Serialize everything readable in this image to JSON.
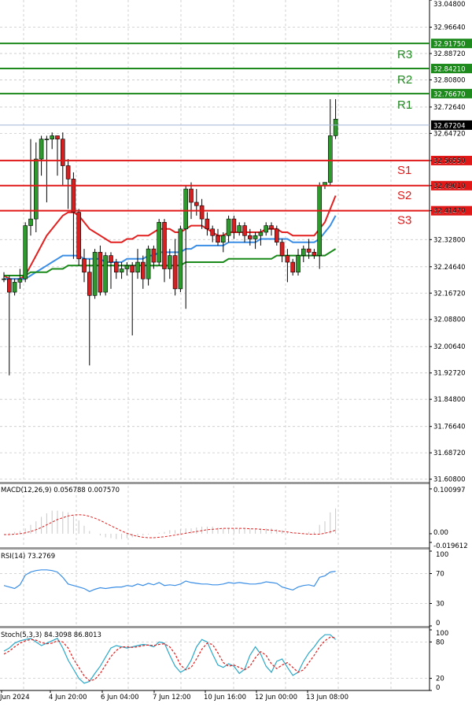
{
  "colors": {
    "bull": "#2e9a2e",
    "bear": "#d42020",
    "resistance": "#1e8a1e",
    "support": "#e01818",
    "ma_red": "#e32020",
    "ma_blue": "#3a8ee6",
    "ma_green": "#1a8a1a",
    "macd_hist": "#c8c8c8",
    "macd_signal": "#e02020",
    "rsi": "#3a8ee6",
    "stoch_main": "#2aa8c8",
    "stoch_signal": "#e02020",
    "grid": "#c8c8c8",
    "current": "#a0b4d8"
  },
  "chart_data": [
    {
      "type": "candlestick",
      "name": "price",
      "ylim": [
        31.6,
        33.048
      ],
      "y_ticks": [
        "33.04800",
        "32.96640",
        "32.88720",
        "32.80800",
        "32.72640",
        "32.64720",
        "32.56550",
        "32.49010",
        "32.41470",
        "32.32800",
        "32.24640",
        "32.16720",
        "32.08800",
        "32.00640",
        "31.92720",
        "31.84800",
        "31.76640",
        "31.68720",
        "31.60800"
      ],
      "current_price": "32.67204",
      "levels": [
        {
          "label": "R3",
          "value": "32.91750",
          "kind": "resistance"
        },
        {
          "label": "R2",
          "value": "32.84210",
          "kind": "resistance"
        },
        {
          "label": "R1",
          "value": "32.76670",
          "kind": "resistance"
        },
        {
          "label": "S1",
          "value": "32.56550",
          "kind": "support"
        },
        {
          "label": "S2",
          "value": "32.49010",
          "kind": "support"
        },
        {
          "label": "S3",
          "value": "32.41470",
          "kind": "support"
        }
      ],
      "candles": [
        {
          "o": 32.21,
          "h": 32.23,
          "l": 32.2,
          "c": 32.21
        },
        {
          "o": 32.21,
          "h": 32.22,
          "l": 31.92,
          "c": 32.17
        },
        {
          "o": 32.17,
          "h": 32.21,
          "l": 32.16,
          "c": 32.2
        },
        {
          "o": 32.2,
          "h": 32.24,
          "l": 32.18,
          "c": 32.21
        },
        {
          "o": 32.21,
          "h": 32.38,
          "l": 32.2,
          "c": 32.37
        },
        {
          "o": 32.37,
          "h": 32.63,
          "l": 32.34,
          "c": 32.39
        },
        {
          "o": 32.39,
          "h": 32.62,
          "l": 32.35,
          "c": 32.57
        },
        {
          "o": 32.57,
          "h": 32.64,
          "l": 32.52,
          "c": 32.63
        },
        {
          "o": 32.63,
          "h": 32.64,
          "l": 32.44,
          "c": 32.63
        },
        {
          "o": 32.63,
          "h": 32.65,
          "l": 32.6,
          "c": 32.64
        },
        {
          "o": 32.64,
          "h": 32.64,
          "l": 32.52,
          "c": 32.63
        },
        {
          "o": 32.63,
          "h": 32.65,
          "l": 32.49,
          "c": 32.55
        },
        {
          "o": 32.55,
          "h": 32.57,
          "l": 32.42,
          "c": 32.51
        },
        {
          "o": 32.51,
          "h": 32.53,
          "l": 32.27,
          "c": 32.41
        },
        {
          "o": 32.41,
          "h": 32.42,
          "l": 32.25,
          "c": 32.27
        },
        {
          "o": 32.27,
          "h": 32.3,
          "l": 32.2,
          "c": 32.23
        },
        {
          "o": 32.23,
          "h": 32.27,
          "l": 31.95,
          "c": 32.16
        },
        {
          "o": 32.16,
          "h": 32.3,
          "l": 32.15,
          "c": 32.29
        },
        {
          "o": 32.29,
          "h": 32.31,
          "l": 32.16,
          "c": 32.17
        },
        {
          "o": 32.17,
          "h": 32.29,
          "l": 32.16,
          "c": 32.28
        },
        {
          "o": 32.28,
          "h": 32.29,
          "l": 32.18,
          "c": 32.26
        },
        {
          "o": 32.26,
          "h": 32.27,
          "l": 32.21,
          "c": 32.23
        },
        {
          "o": 32.23,
          "h": 32.26,
          "l": 32.21,
          "c": 32.24
        },
        {
          "o": 32.24,
          "h": 32.26,
          "l": 32.22,
          "c": 32.25
        },
        {
          "o": 32.25,
          "h": 32.26,
          "l": 32.04,
          "c": 32.23
        },
        {
          "o": 32.23,
          "h": 32.3,
          "l": 32.21,
          "c": 32.26
        },
        {
          "o": 32.26,
          "h": 32.28,
          "l": 32.18,
          "c": 32.21
        },
        {
          "o": 32.21,
          "h": 32.31,
          "l": 32.19,
          "c": 32.3
        },
        {
          "o": 32.3,
          "h": 32.31,
          "l": 32.24,
          "c": 32.26
        },
        {
          "o": 32.26,
          "h": 32.39,
          "l": 32.25,
          "c": 32.38
        },
        {
          "o": 32.38,
          "h": 32.39,
          "l": 32.2,
          "c": 32.24
        },
        {
          "o": 32.24,
          "h": 32.3,
          "l": 32.21,
          "c": 32.28
        },
        {
          "o": 32.28,
          "h": 32.33,
          "l": 32.16,
          "c": 32.18
        },
        {
          "o": 32.18,
          "h": 32.37,
          "l": 32.17,
          "c": 32.36
        },
        {
          "o": 32.36,
          "h": 32.49,
          "l": 32.12,
          "c": 32.48
        },
        {
          "o": 32.48,
          "h": 32.5,
          "l": 32.39,
          "c": 32.44
        },
        {
          "o": 32.44,
          "h": 32.48,
          "l": 32.4,
          "c": 32.43
        },
        {
          "o": 32.43,
          "h": 32.45,
          "l": 32.36,
          "c": 32.39
        },
        {
          "o": 32.39,
          "h": 32.41,
          "l": 32.34,
          "c": 32.36
        },
        {
          "o": 32.36,
          "h": 32.37,
          "l": 32.32,
          "c": 32.34
        },
        {
          "o": 32.34,
          "h": 32.36,
          "l": 32.31,
          "c": 32.32
        },
        {
          "o": 32.32,
          "h": 32.35,
          "l": 32.29,
          "c": 32.34
        },
        {
          "o": 32.34,
          "h": 32.4,
          "l": 32.32,
          "c": 32.39
        },
        {
          "o": 32.39,
          "h": 32.4,
          "l": 32.33,
          "c": 32.35
        },
        {
          "o": 32.35,
          "h": 32.38,
          "l": 32.34,
          "c": 32.37
        },
        {
          "o": 32.37,
          "h": 32.38,
          "l": 32.32,
          "c": 32.34
        },
        {
          "o": 32.34,
          "h": 32.36,
          "l": 32.31,
          "c": 32.33
        },
        {
          "o": 32.33,
          "h": 32.35,
          "l": 32.3,
          "c": 32.34
        },
        {
          "o": 32.34,
          "h": 32.36,
          "l": 32.31,
          "c": 32.35
        },
        {
          "o": 32.35,
          "h": 32.38,
          "l": 32.34,
          "c": 32.37
        },
        {
          "o": 32.37,
          "h": 32.38,
          "l": 32.34,
          "c": 32.36
        },
        {
          "o": 32.36,
          "h": 32.37,
          "l": 32.31,
          "c": 32.32
        },
        {
          "o": 32.32,
          "h": 32.33,
          "l": 32.26,
          "c": 32.28
        },
        {
          "o": 32.28,
          "h": 32.3,
          "l": 32.2,
          "c": 32.26
        },
        {
          "o": 32.26,
          "h": 32.27,
          "l": 32.22,
          "c": 32.23
        },
        {
          "o": 32.23,
          "h": 32.3,
          "l": 32.22,
          "c": 32.28
        },
        {
          "o": 32.28,
          "h": 32.31,
          "l": 32.26,
          "c": 32.3
        },
        {
          "o": 32.3,
          "h": 32.33,
          "l": 32.27,
          "c": 32.29
        },
        {
          "o": 32.29,
          "h": 32.3,
          "l": 32.27,
          "c": 32.28
        },
        {
          "o": 32.28,
          "h": 32.5,
          "l": 32.24,
          "c": 32.49
        },
        {
          "o": 32.49,
          "h": 32.5,
          "l": 32.48,
          "c": 32.5
        },
        {
          "o": 32.5,
          "h": 32.75,
          "l": 32.49,
          "c": 32.64
        },
        {
          "o": 32.64,
          "h": 32.75,
          "l": 32.63,
          "c": 32.69
        }
      ],
      "moving_averages": [
        {
          "color_key": "ma_red",
          "values": [
            32.22,
            32.21,
            32.21,
            32.21,
            32.22,
            32.25,
            32.28,
            32.31,
            32.34,
            32.36,
            32.38,
            32.4,
            32.41,
            32.41,
            32.4,
            32.38,
            32.36,
            32.35,
            32.34,
            32.33,
            32.32,
            32.32,
            32.32,
            32.33,
            32.33,
            32.34,
            32.34,
            32.34,
            32.35,
            32.36,
            32.36,
            32.36,
            32.35,
            32.35,
            32.36,
            32.37,
            32.37,
            32.37,
            32.36,
            32.35,
            32.34,
            32.34,
            32.35,
            32.35,
            32.35,
            32.35,
            32.35,
            32.35,
            32.35,
            32.36,
            32.36,
            32.36,
            32.35,
            32.35,
            32.34,
            32.34,
            32.34,
            32.34,
            32.34,
            32.36,
            32.38,
            32.42,
            32.46
          ]
        },
        {
          "color_key": "ma_blue",
          "values": [
            32.21,
            32.21,
            32.21,
            32.21,
            32.21,
            32.22,
            32.23,
            32.24,
            32.25,
            32.26,
            32.27,
            32.28,
            32.28,
            32.28,
            32.28,
            32.27,
            32.27,
            32.27,
            32.27,
            32.26,
            32.26,
            32.26,
            32.26,
            32.27,
            32.27,
            32.27,
            32.27,
            32.28,
            32.28,
            32.29,
            32.29,
            32.29,
            32.29,
            32.29,
            32.3,
            32.3,
            32.31,
            32.31,
            32.31,
            32.31,
            32.31,
            32.31,
            32.32,
            32.32,
            32.32,
            32.32,
            32.32,
            32.32,
            32.33,
            32.33,
            32.33,
            32.33,
            32.33,
            32.33,
            32.32,
            32.32,
            32.32,
            32.32,
            32.32,
            32.33,
            32.35,
            32.37,
            32.4
          ]
        },
        {
          "color_key": "ma_green",
          "values": [
            32.22,
            32.22,
            32.22,
            32.22,
            32.22,
            32.23,
            32.23,
            32.23,
            32.23,
            32.24,
            32.24,
            32.24,
            32.25,
            32.25,
            32.25,
            32.25,
            32.25,
            32.25,
            32.25,
            32.25,
            32.25,
            32.25,
            32.25,
            32.25,
            32.25,
            32.25,
            32.25,
            32.25,
            32.25,
            32.25,
            32.25,
            32.25,
            32.25,
            32.25,
            32.26,
            32.26,
            32.26,
            32.26,
            32.26,
            32.26,
            32.26,
            32.26,
            32.27,
            32.27,
            32.27,
            32.27,
            32.27,
            32.27,
            32.27,
            32.27,
            32.27,
            32.28,
            32.28,
            32.28,
            32.28,
            32.28,
            32.28,
            32.28,
            32.28,
            32.28,
            32.28,
            32.29,
            32.3
          ]
        }
      ]
    },
    {
      "type": "macd",
      "title": "MACD(12,26,9) 0.056788 0.007570",
      "ylim": [
        -0.025,
        0.108
      ],
      "y_ticks": [
        "0.100997",
        "0.00",
        "-0.019612"
      ],
      "histogram": [
        0.0,
        0.002,
        0.004,
        0.006,
        0.012,
        0.02,
        0.028,
        0.038,
        0.046,
        0.052,
        0.052,
        0.05,
        0.048,
        0.04,
        0.03,
        0.018,
        0.006,
        0.0,
        -0.004,
        -0.008,
        -0.01,
        -0.012,
        -0.012,
        -0.01,
        -0.008,
        -0.006,
        -0.004,
        -0.002,
        0.0,
        0.002,
        0.004,
        0.008,
        0.008,
        0.01,
        0.012,
        0.012,
        0.014,
        0.016,
        0.016,
        0.016,
        0.014,
        0.012,
        0.012,
        0.012,
        0.012,
        0.012,
        0.012,
        0.012,
        0.012,
        0.012,
        0.012,
        0.01,
        0.008,
        0.004,
        0.002,
        0.002,
        0.002,
        0.004,
        0.004,
        0.02,
        0.028,
        0.048,
        0.057
      ],
      "signal": [
        -0.002,
        -0.002,
        -0.001,
        0.0,
        0.002,
        0.005,
        0.009,
        0.014,
        0.02,
        0.026,
        0.032,
        0.036,
        0.04,
        0.042,
        0.043,
        0.042,
        0.039,
        0.035,
        0.03,
        0.024,
        0.018,
        0.012,
        0.006,
        0.001,
        -0.003,
        -0.006,
        -0.008,
        -0.009,
        -0.009,
        -0.008,
        -0.007,
        -0.005,
        -0.003,
        -0.001,
        0.001,
        0.003,
        0.005,
        0.007,
        0.009,
        0.01,
        0.011,
        0.012,
        0.012,
        0.012,
        0.012,
        0.012,
        0.011,
        0.011,
        0.01,
        0.009,
        0.008,
        0.007,
        0.005,
        0.004,
        0.002,
        0.001,
        0.0,
        -0.001,
        -0.001,
        -0.001,
        0.001,
        0.004,
        0.008
      ]
    },
    {
      "type": "line",
      "title": "RSI(14) 73.2769",
      "ylim": [
        0,
        100
      ],
      "y_ticks": [
        "100",
        "70",
        "30",
        "0"
      ],
      "values": [
        54,
        52,
        50,
        55,
        68,
        72,
        74,
        75,
        75,
        74,
        72,
        65,
        56,
        54,
        52,
        50,
        46,
        49,
        51,
        50,
        51,
        52,
        52,
        54,
        53,
        56,
        54,
        57,
        55,
        58,
        54,
        55,
        54,
        56,
        60,
        58,
        57,
        56,
        56,
        55,
        55,
        56,
        58,
        57,
        58,
        57,
        56,
        56,
        57,
        59,
        58,
        57,
        52,
        50,
        48,
        52,
        54,
        55,
        53,
        65,
        67,
        72,
        73
      ]
    },
    {
      "type": "line",
      "title": "Stoch(5,3,3) 84.3098 86.8013",
      "ylim": [
        0,
        100
      ],
      "y_ticks": [
        "100",
        "80",
        "20",
        "0"
      ],
      "series": [
        {
          "color_key": "stoch_main",
          "values": [
            65,
            70,
            78,
            82,
            84,
            86,
            80,
            74,
            78,
            82,
            86,
            70,
            50,
            35,
            20,
            12,
            15,
            28,
            40,
            55,
            70,
            74,
            72,
            70,
            72,
            74,
            76,
            75,
            72,
            80,
            78,
            58,
            40,
            30,
            35,
            50,
            72,
            84,
            80,
            60,
            42,
            38,
            44,
            40,
            28,
            35,
            58,
            72,
            60,
            40,
            30,
            48,
            52,
            38,
            25,
            30,
            48,
            62,
            72,
            84,
            92,
            92,
            84
          ]
        },
        {
          "color_key": "stoch_signal",
          "values": [
            60,
            65,
            72,
            78,
            82,
            84,
            83,
            79,
            77,
            78,
            82,
            80,
            70,
            52,
            38,
            24,
            16,
            18,
            28,
            42,
            56,
            66,
            72,
            72,
            71,
            72,
            74,
            75,
            74,
            76,
            77,
            72,
            60,
            42,
            34,
            38,
            52,
            68,
            78,
            76,
            62,
            46,
            40,
            42,
            38,
            34,
            40,
            54,
            64,
            58,
            44,
            36,
            42,
            46,
            38,
            30,
            34,
            46,
            58,
            72,
            82,
            88,
            87
          ]
        }
      ]
    }
  ],
  "time_labels": [
    "Jun 2024",
    "4 Jun 20:00",
    "6 Jun 04:00",
    "7 Jun 12:00",
    "10 Jun 16:00",
    "12 Jun 00:00",
    "13 Jun 08:00"
  ]
}
